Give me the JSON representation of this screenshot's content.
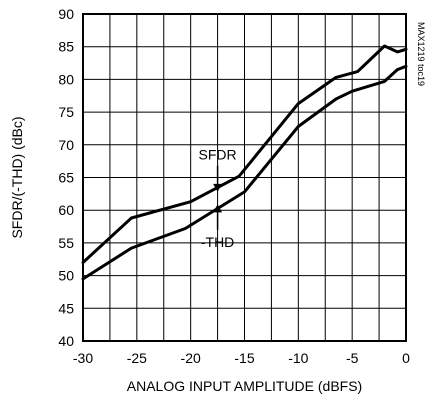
{
  "chart_data": {
    "type": "line",
    "title": "",
    "xlabel": "ANALOG INPUT AMPLITUDE (dBFS)",
    "ylabel": "SFDR/(-THD) (dBc)",
    "xlim": [
      -30,
      0
    ],
    "ylim": [
      40,
      90
    ],
    "x_ticks": [
      -30,
      -25,
      -20,
      -15,
      -10,
      -5,
      0
    ],
    "y_ticks": [
      40,
      45,
      50,
      55,
      60,
      65,
      70,
      75,
      80,
      85,
      90
    ],
    "grid": true,
    "legend": "none",
    "series": [
      {
        "name": "SFDR",
        "color": "#000000",
        "points": [
          [
            -30,
            52
          ],
          [
            -25.5,
            58.8
          ],
          [
            -20,
            61.3
          ],
          [
            -15.5,
            65.2
          ],
          [
            -10,
            76.3
          ],
          [
            -6.5,
            80.3
          ],
          [
            -4.5,
            81.2
          ],
          [
            -2,
            85.1
          ],
          [
            -0.8,
            84.2
          ],
          [
            0,
            84.6
          ]
        ]
      },
      {
        "name": "-THD",
        "color": "#000000",
        "points": [
          [
            -30,
            49.5
          ],
          [
            -25.5,
            54.2
          ],
          [
            -20.5,
            57.2
          ],
          [
            -15,
            62.8
          ],
          [
            -10,
            72.8
          ],
          [
            -6.5,
            77.0
          ],
          [
            -5,
            78.2
          ],
          [
            -2,
            79.7
          ],
          [
            -0.8,
            81.5
          ],
          [
            0,
            82.0
          ]
        ]
      }
    ],
    "annotations": [
      {
        "id": "sfdr",
        "text": "SFDR",
        "arrow_from": [
          -17.5,
          66.8
        ],
        "arrow_to": [
          -17.5,
          62.8
        ]
      },
      {
        "id": "thd",
        "text": "-THD",
        "arrow_from": [
          -17.5,
          57.0
        ],
        "arrow_to": [
          -17.5,
          60.9
        ]
      }
    ],
    "watermark": "MAX1219 toc19"
  }
}
